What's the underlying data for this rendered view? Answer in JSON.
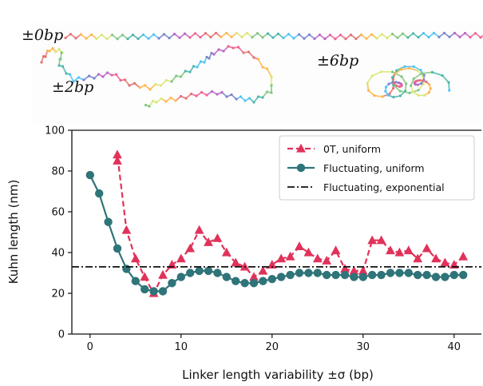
{
  "panel_labels": [
    "±0bp",
    "±2bp",
    "±6bp"
  ],
  "chart_data": {
    "type": "line",
    "title": "",
    "xlabel": "Linker length variability ±σ (bp)",
    "ylabel": "Kuhn length (nm)",
    "xlim": [
      -2,
      43
    ],
    "ylim": [
      0,
      100
    ],
    "xticks": [
      0,
      10,
      20,
      30,
      40
    ],
    "yticks": [
      0,
      20,
      40,
      60,
      80,
      100
    ],
    "grid": false,
    "legend_position": "top-right",
    "series": [
      {
        "name": "0T, uniform",
        "color": "#e0325a",
        "style": "dashed",
        "marker": "triangle",
        "x": [
          3,
          3,
          4,
          5,
          6,
          7,
          8,
          9,
          10,
          11,
          12,
          13,
          14,
          15,
          16,
          17,
          18,
          19,
          20,
          21,
          22,
          23,
          24,
          25,
          26,
          27,
          28,
          29,
          30,
          31,
          32,
          33,
          34,
          35,
          36,
          37,
          38,
          39,
          40,
          41
        ],
        "y": [
          85,
          88,
          51,
          37,
          28,
          20,
          29,
          34,
          37,
          42,
          51,
          45,
          47,
          40,
          35,
          33,
          28,
          31,
          34,
          37,
          38,
          43,
          40,
          37,
          36,
          41,
          32,
          31,
          31,
          46,
          46,
          41,
          40,
          41,
          37,
          42,
          37,
          35,
          34,
          38
        ]
      },
      {
        "name": "Fluctuating, uniform",
        "color": "#2f7479",
        "style": "solid",
        "marker": "circle",
        "x": [
          0,
          1,
          2,
          3,
          4,
          5,
          6,
          7,
          8,
          9,
          10,
          11,
          12,
          13,
          14,
          15,
          16,
          17,
          18,
          19,
          20,
          21,
          22,
          23,
          24,
          25,
          26,
          27,
          28,
          29,
          30,
          31,
          32,
          33,
          34,
          35,
          36,
          37,
          38,
          39,
          40,
          41
        ],
        "y": [
          78,
          69,
          55,
          42,
          32,
          26,
          22,
          21,
          21,
          25,
          28,
          30,
          31,
          31,
          30,
          28,
          26,
          25,
          25,
          26,
          27,
          28,
          29,
          30,
          30,
          30,
          29,
          29,
          29,
          28,
          28,
          29,
          29,
          30,
          30,
          30,
          29,
          29,
          28,
          28,
          29,
          29
        ]
      },
      {
        "name": "Fluctuating, exponential",
        "color": "#111111",
        "style": "dashdot",
        "marker": "none",
        "x": [
          -2,
          43
        ],
        "y": [
          33,
          33
        ]
      }
    ]
  }
}
